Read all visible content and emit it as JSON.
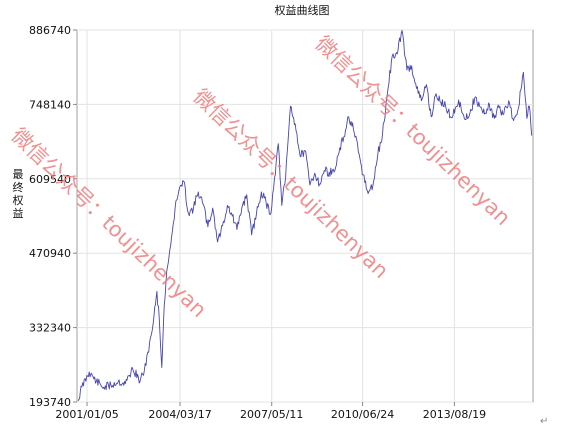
{
  "chart_data": {
    "type": "line",
    "title": "权益曲线图",
    "ylabel": "最终权益",
    "xlabel": "",
    "ylim": [
      193740,
      886740
    ],
    "y_ticks": [
      193740,
      332340,
      470940,
      609540,
      748140,
      886740
    ],
    "x_tick_labels": [
      "2001/01/05",
      "2004/03/17",
      "2007/05/11",
      "2010/06/24",
      "2013/08/19"
    ],
    "xlim": [
      "2000-09-01",
      "2016-05-01"
    ],
    "grid": true,
    "legend": "none",
    "series": [
      {
        "color": "#4545b5",
        "x": [
          "2000-09-15",
          "2000-11-01",
          "2001-02-01",
          "2001-05-01",
          "2001-08-01",
          "2001-11-01",
          "2002-02-01",
          "2002-05-01",
          "2002-08-01",
          "2002-11-01",
          "2003-01-15",
          "2003-03-01",
          "2003-04-15",
          "2003-06-01",
          "2003-07-01",
          "2003-08-01",
          "2003-09-01",
          "2003-10-01",
          "2003-11-01",
          "2003-12-01",
          "2004-01-15",
          "2004-03-01",
          "2004-05-01",
          "2004-07-01",
          "2004-09-01",
          "2004-11-01",
          "2005-01-01",
          "2005-03-01",
          "2005-05-01",
          "2005-07-01",
          "2005-09-01",
          "2005-11-01",
          "2006-01-01",
          "2006-03-01",
          "2006-05-01",
          "2006-07-01",
          "2006-09-01",
          "2006-11-01",
          "2007-01-01",
          "2007-03-01",
          "2007-05-01",
          "2007-06-15",
          "2007-08-01",
          "2007-09-15",
          "2007-11-01",
          "2008-01-01",
          "2008-03-01",
          "2008-05-01",
          "2008-07-01",
          "2008-09-01",
          "2008-11-01",
          "2009-01-01",
          "2009-03-01",
          "2009-05-01",
          "2009-07-01",
          "2009-09-01",
          "2009-11-01",
          "2010-01-01",
          "2010-03-01",
          "2010-05-01",
          "2010-07-01",
          "2010-09-01",
          "2010-11-01",
          "2011-01-01",
          "2011-03-01",
          "2011-05-01",
          "2011-07-01",
          "2011-09-01",
          "2011-11-01",
          "2012-01-01",
          "2012-03-01",
          "2012-05-01",
          "2012-07-01",
          "2012-09-01",
          "2012-11-01",
          "2013-01-01",
          "2013-03-01",
          "2013-05-01",
          "2013-07-01",
          "2013-09-01",
          "2013-11-01",
          "2014-01-01",
          "2014-03-01",
          "2014-05-01",
          "2014-07-01",
          "2014-09-01",
          "2014-11-01",
          "2015-01-01",
          "2015-03-01",
          "2015-05-01",
          "2015-07-01",
          "2015-09-01",
          "2015-11-01",
          "2016-01-01",
          "2016-02-15",
          "2016-03-15",
          "2016-04-15"
        ],
        "values": [
          196000,
          222000,
          250000,
          232000,
          221000,
          225000,
          232000,
          228000,
          256000,
          232000,
          262000,
          305000,
          340000,
          400000,
          348000,
          258000,
          375000,
          437000,
          466000,
          500000,
          555000,
          587000,
          605000,
          545000,
          555000,
          585000,
          562000,
          520000,
          555000,
          492000,
          522000,
          560000,
          540000,
          515000,
          555000,
          580000,
          505000,
          545000,
          585000,
          565000,
          545000,
          612000,
          675000,
          560000,
          612000,
          745000,
          712000,
          652000,
          662000,
          598000,
          620000,
          600000,
          625000,
          622000,
          622000,
          658000,
          688000,
          725000,
          702000,
          660000,
          617000,
          582000,
          597000,
          655000,
          692000,
          768000,
          838000,
          842000,
          886000,
          812000,
          820000,
          778000,
          755000,
          785000,
          725000,
          768000,
          752000,
          745000,
          725000,
          742000,
          752000,
          720000,
          732000,
          760000,
          745000,
          730000,
          748000,
          722000,
          742000,
          730000,
          755000,
          718000,
          742000,
          808000,
          722000,
          745000,
          690000
        ]
      }
    ],
    "watermark": "微信公众号：toujizhenyan",
    "corner_mark": "↵"
  }
}
